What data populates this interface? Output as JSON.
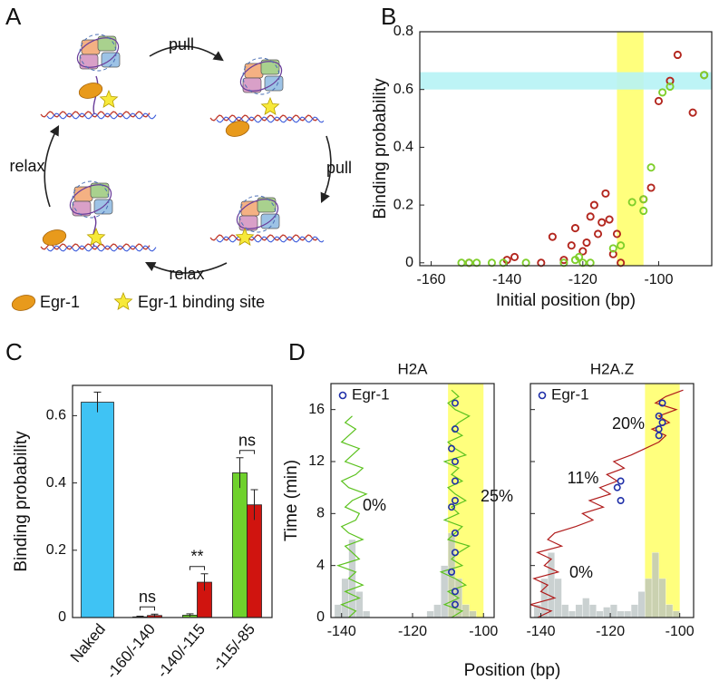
{
  "diagram": {
    "panel_label": "A",
    "arrows": [
      "pull",
      "pull",
      "relax",
      "relax"
    ],
    "legend": [
      "Egr-1",
      "Egr-1 binding site"
    ]
  },
  "chart_data": [
    {
      "type": "scatter",
      "panel_label": "B",
      "xlabel": "Initial position (bp)",
      "ylabel": "Binding probability",
      "xlim": [
        -163,
        -86
      ],
      "ylim": [
        -0.01,
        0.8
      ],
      "xticks": [
        -160,
        -140,
        -120,
        -100
      ],
      "yticks": [
        0,
        0.2,
        0.4,
        0.6,
        0.8
      ],
      "vspan": [
        -111,
        -104
      ],
      "vspan_color": "#ffff66",
      "hspan": [
        0.6,
        0.66
      ],
      "hspan_color": "#b6f3f5",
      "series": [
        {
          "color": "#b3261e",
          "x": [
            -150,
            -140,
            -138,
            -131,
            -128,
            -125,
            -123,
            -122,
            -120,
            -119,
            -118,
            -117,
            -116,
            -115,
            -114,
            -113,
            -112,
            -111,
            -110,
            -104,
            -102,
            -100,
            -97,
            -95,
            -91,
            -88
          ],
          "y": [
            0,
            0.01,
            0.02,
            0,
            0.09,
            0.01,
            0.06,
            0.12,
            0.04,
            0.07,
            0.16,
            0.2,
            0.1,
            0.14,
            0.24,
            0.15,
            0.03,
            0.1,
            0,
            0.22,
            0.26,
            0.56,
            0.63,
            0.72,
            0.52,
            0.65
          ]
        },
        {
          "color": "#7fcf2b",
          "x": [
            -152,
            -150,
            -148,
            -144,
            -141,
            -135,
            -125,
            -122,
            -121,
            -120,
            -118,
            -112,
            -110,
            -107,
            -104,
            -104,
            -102,
            -99,
            -97,
            -88
          ],
          "y": [
            0,
            0,
            0,
            0,
            0,
            0,
            0,
            0.01,
            0.02,
            0,
            0,
            0.05,
            0.06,
            0.21,
            0.18,
            0.22,
            0.33,
            0.59,
            0.61,
            0.65
          ]
        }
      ]
    },
    {
      "type": "bar",
      "panel_label": "C",
      "ylabel": "Binding probability",
      "categories": [
        "Naked",
        "-160/-140",
        "-140/-115",
        "-115/-85"
      ],
      "ylim": [
        0,
        0.69
      ],
      "yticks": [
        0,
        0.2,
        0.4,
        0.6
      ],
      "series": [
        {
          "color": "#3fc3f4",
          "values": [
            0.64,
            null,
            null,
            null
          ],
          "errors": [
            0.03,
            null,
            null,
            null
          ]
        },
        {
          "color": "#6fd12c",
          "values": [
            null,
            0.002,
            0.007,
            0.43
          ],
          "errors": [
            null,
            0.002,
            0.004,
            0.045
          ]
        },
        {
          "color": "#d0140f",
          "values": [
            null,
            0.006,
            0.105,
            0.335
          ],
          "errors": [
            null,
            0.004,
            0.025,
            0.045
          ]
        }
      ],
      "annotations": [
        "ns",
        "**",
        "ns"
      ]
    },
    {
      "type": "line",
      "panel_label": "D",
      "title": "H2A",
      "xlabel": "Position (bp)",
      "ylabel": "Time (min)",
      "xlim": [
        -143,
        -97
      ],
      "ylim": [
        0,
        18
      ],
      "xticks": [
        -140,
        -120,
        -100
      ],
      "yticks": [
        0,
        4,
        8,
        12,
        16
      ],
      "vspan": [
        -110,
        -100
      ],
      "vspan_color": "#ffff66",
      "hist": {
        "color": "#b9c2c2",
        "bins": [
          -142,
          -140,
          -138,
          -136,
          -134,
          -132,
          -130,
          -128,
          -126,
          -124,
          -122,
          -120,
          -118,
          -116,
          -114,
          -112,
          -110,
          -108,
          -106,
          -104,
          -102
        ],
        "counts": [
          1,
          3,
          6,
          2,
          0.5,
          0,
          0,
          0,
          0,
          0,
          0,
          0,
          0,
          0.5,
          1,
          4,
          6.5,
          3,
          1,
          0.5
        ]
      },
      "series": [
        {
          "color": "#5cc21f",
          "x": [
            -138,
            -136,
            -140,
            -135,
            -139,
            -134,
            -138,
            -136,
            -141,
            -135,
            -137,
            -139,
            -134,
            -138,
            -140,
            -136,
            -135,
            -139,
            -137,
            -133,
            -138,
            -140,
            -136,
            -134,
            -139,
            -137,
            -135,
            -140,
            -138,
            -136,
            -139,
            -137
          ],
          "y": [
            0,
            0.5,
            1,
            1.5,
            2,
            2.5,
            3,
            3.5,
            4,
            4.5,
            5,
            5.5,
            6,
            6.5,
            7,
            7.5,
            8,
            8.5,
            9,
            9.5,
            10,
            10.5,
            11,
            11.5,
            12,
            12.5,
            13,
            13.5,
            14,
            14.5,
            15,
            15.5
          ]
        },
        {
          "color": "#5cc21f",
          "x": [
            -109,
            -106,
            -111,
            -107,
            -110,
            -105,
            -108,
            -112,
            -106,
            -109,
            -107,
            -104,
            -110,
            -108,
            -106,
            -111,
            -107,
            -109,
            -105,
            -108,
            -110,
            -106,
            -109,
            -107,
            -111,
            -105,
            -108,
            -110,
            -106,
            -109,
            -107,
            -104,
            -108,
            -110,
            -107,
            -109
          ],
          "y": [
            0,
            0.5,
            1,
            1.5,
            2,
            2.5,
            3,
            3.5,
            4,
            4.5,
            5,
            5.5,
            6,
            6.5,
            7,
            7.5,
            8,
            8.5,
            9,
            9.5,
            10,
            10.5,
            11,
            11.5,
            12,
            12.5,
            13,
            13.5,
            14,
            14.5,
            15,
            15.5,
            16,
            16.5,
            17,
            17.5
          ]
        }
      ],
      "markers": {
        "name": "Egr-1",
        "color": "#1f2fa8",
        "x": [
          -108,
          -108,
          -109,
          -108,
          -108,
          -109,
          -108,
          -108,
          -108,
          -109,
          -108,
          -108
        ],
        "y": [
          1,
          2,
          3.5,
          5,
          6.5,
          8.5,
          9,
          10.5,
          12,
          13,
          14.5,
          16.5
        ]
      },
      "annotations": [
        "0%",
        "25%"
      ]
    },
    {
      "type": "line",
      "title": "H2A.Z",
      "ytick_labels": false,
      "xlim": [
        -143,
        -96
      ],
      "ylim": [
        0,
        18
      ],
      "xticks": [
        -140,
        -120,
        -100
      ],
      "yticks": [
        0,
        4,
        8,
        12,
        16
      ],
      "vspan": [
        -110,
        -100
      ],
      "vspan_color": "#ffff66",
      "hist": {
        "color": "#b9c2c2",
        "bins": [
          -142,
          -140,
          -138,
          -136,
          -134,
          -132,
          -130,
          -128,
          -126,
          -124,
          -122,
          -120,
          -118,
          -116,
          -114,
          -112,
          -110,
          -108,
          -106,
          -104,
          -102,
          -100
        ],
        "counts": [
          1,
          3,
          5,
          3,
          1,
          0.5,
          1,
          1.5,
          1,
          0.5,
          0.8,
          1,
          0.5,
          0.5,
          1,
          2,
          3,
          5,
          3,
          1,
          0.5
        ]
      },
      "series": [
        {
          "color": "#b01c1c",
          "x": [
            -141,
            -137,
            -143,
            -136,
            -140,
            -138,
            -142,
            -135,
            -139,
            -137,
            -141,
            -134,
            -138,
            -136,
            -130,
            -125,
            -128,
            -122,
            -126,
            -120,
            -123,
            -118,
            -121,
            -116,
            -119,
            -114,
            -110,
            -106,
            -104,
            -108,
            -103,
            -106,
            -101,
            -107,
            -104,
            -99
          ],
          "y": [
            0,
            0.5,
            1,
            1.5,
            2,
            2.5,
            3,
            3.5,
            4,
            4.5,
            5,
            5.5,
            6,
            6.5,
            7,
            7.5,
            8,
            8.5,
            9,
            9.5,
            10,
            10.5,
            11,
            11.5,
            12,
            12.5,
            13,
            13.5,
            14,
            14.5,
            15,
            15.5,
            16,
            16.5,
            17,
            17.5
          ]
        }
      ],
      "markers": {
        "name": "Egr-1",
        "color": "#1f2fa8",
        "x": [
          -117,
          -118,
          -117,
          -106,
          -105,
          -106,
          -105,
          -106
        ],
        "y": [
          9,
          10,
          10.5,
          14.5,
          15,
          15.5,
          16.5,
          14
        ]
      },
      "annotations": [
        "11%",
        "20%",
        "0%"
      ]
    }
  ]
}
